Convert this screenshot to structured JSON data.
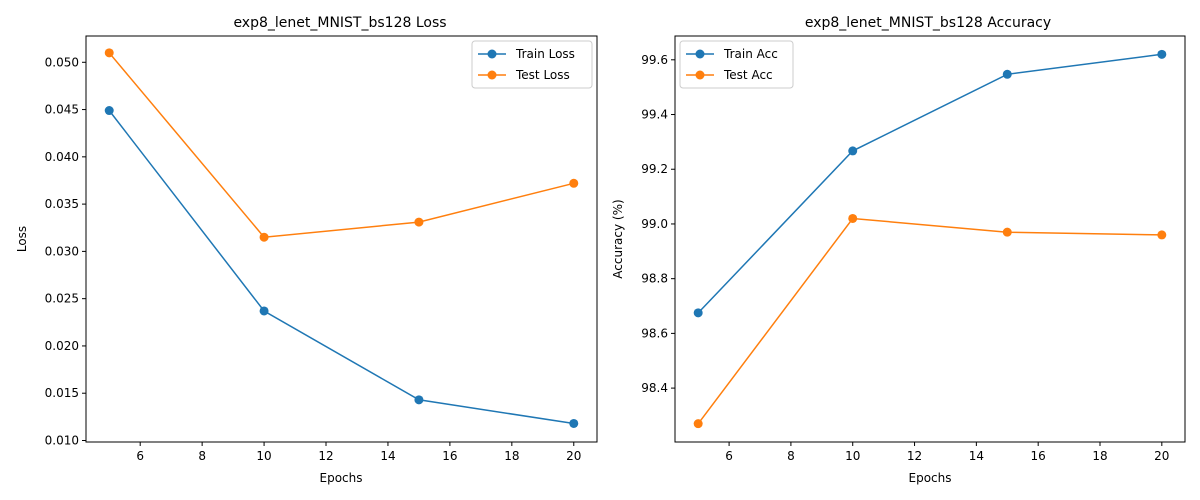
{
  "chart_data": [
    {
      "type": "line",
      "title": "exp8_lenet_MNIST_bs128 Loss",
      "xlabel": "Epochs",
      "ylabel": "Loss",
      "x": [
        5,
        10,
        15,
        20
      ],
      "xlim": [
        4.25,
        20.75
      ],
      "ylim": [
        0.00984,
        0.05278
      ],
      "xticks": [
        6,
        8,
        10,
        12,
        14,
        16,
        18,
        20
      ],
      "yticks": [
        0.01,
        0.015,
        0.02,
        0.025,
        0.03,
        0.035,
        0.04,
        0.045,
        0.05
      ],
      "ytick_decimals": 3,
      "legend_position": "top-right",
      "grid": false,
      "series": [
        {
          "name": "Train Loss",
          "color": "#1f77b4",
          "values": [
            0.0449,
            0.0237,
            0.0143,
            0.0118
          ]
        },
        {
          "name": "Test Loss",
          "color": "#ff7f0e",
          "values": [
            0.051,
            0.0315,
            0.0331,
            0.0372
          ]
        }
      ]
    },
    {
      "type": "line",
      "title": "exp8_lenet_MNIST_bs128 Accuracy",
      "xlabel": "Epochs",
      "ylabel": "Accuracy (%)",
      "x": [
        5,
        10,
        15,
        20
      ],
      "xlim": [
        4.25,
        20.75
      ],
      "ylim": [
        98.203,
        99.687
      ],
      "xticks": [
        6,
        8,
        10,
        12,
        14,
        16,
        18,
        20
      ],
      "yticks": [
        98.4,
        98.6,
        98.8,
        99.0,
        99.2,
        99.4,
        99.6
      ],
      "ytick_decimals": 1,
      "legend_position": "top-left",
      "grid": false,
      "series": [
        {
          "name": "Train Acc",
          "color": "#1f77b4",
          "values": [
            98.675,
            99.267,
            99.547,
            99.62
          ]
        },
        {
          "name": "Test Acc",
          "color": "#ff7f0e",
          "values": [
            98.27,
            99.02,
            98.97,
            98.96
          ]
        }
      ]
    }
  ]
}
